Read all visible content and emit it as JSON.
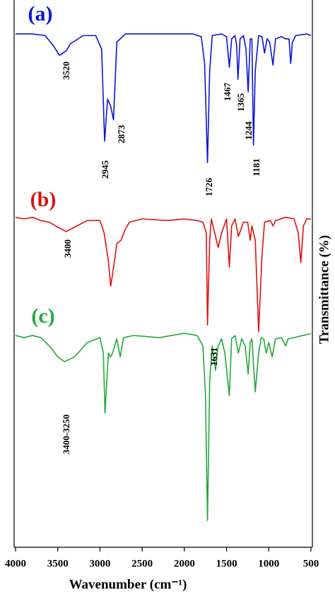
{
  "chart_data": {
    "type": "line",
    "x_label": "Wavenumber (cm⁻¹)",
    "y_label": "Transmittance (%)",
    "xlim": [
      4000,
      500
    ],
    "xticks": [
      4000,
      3500,
      3000,
      2500,
      2000,
      1500,
      1000,
      500
    ],
    "ylim": [
      0,
      100
    ],
    "grid": false,
    "series": [
      {
        "name": "(a)",
        "color": "#0a14d8",
        "x": [
          4000,
          3800,
          3650,
          3550,
          3480,
          3400,
          3350,
          3200,
          3050,
          2980,
          2945,
          2910,
          2873,
          2840,
          2800,
          2700,
          2200,
          1900,
          1800,
          1760,
          1726,
          1700,
          1670,
          1560,
          1500,
          1467,
          1440,
          1400,
          1380,
          1365,
          1340,
          1300,
          1270,
          1244,
          1220,
          1200,
          1181,
          1160,
          1120,
          1080,
          1050,
          1020,
          990,
          950,
          920,
          850,
          800,
          760,
          740,
          720,
          680,
          550,
          500
        ],
        "values": [
          93.8,
          93.8,
          93.5,
          91.6,
          89.9,
          90.7,
          92.0,
          93.5,
          93.5,
          91.0,
          74.2,
          81.9,
          80.6,
          78.1,
          92.3,
          93.8,
          93.8,
          93.8,
          93.3,
          88.4,
          70.3,
          87.1,
          93.5,
          93.8,
          93.3,
          87.7,
          92.9,
          93.5,
          91.6,
          85.5,
          92.9,
          93.5,
          91.0,
          83.2,
          92.9,
          92.9,
          73.5,
          87.1,
          93.5,
          93.3,
          90.3,
          92.9,
          92.3,
          88.1,
          92.9,
          93.3,
          92.9,
          92.9,
          88.4,
          92.3,
          93.5,
          93.8,
          93.5
        ]
      },
      {
        "name": "(b)",
        "color": "#e01010",
        "x": [
          4000,
          3900,
          3800,
          3700,
          3600,
          3500,
          3400,
          3300,
          3150,
          3000,
          2950,
          2900,
          2873,
          2840,
          2800,
          2750,
          2700,
          2650,
          2500,
          2200,
          2000,
          1850,
          1780,
          1740,
          1726,
          1700,
          1680,
          1640,
          1600,
          1560,
          1500,
          1467,
          1440,
          1400,
          1360,
          1300,
          1250,
          1220,
          1200,
          1160,
          1120,
          1080,
          1050,
          980,
          950,
          920,
          800,
          700,
          650,
          620,
          590,
          550,
          500
        ],
        "values": [
          60.3,
          60.0,
          60.3,
          59.7,
          59.4,
          58.5,
          57.7,
          58.5,
          59.7,
          59.7,
          57.4,
          52.3,
          47.7,
          51.0,
          55.5,
          56.1,
          58.1,
          59.4,
          60.0,
          59.7,
          60.0,
          59.7,
          59.4,
          57.4,
          40.6,
          56.1,
          60.0,
          57.4,
          54.8,
          57.4,
          60.0,
          51.2,
          58.7,
          60.0,
          56.8,
          59.4,
          59.4,
          56.1,
          58.7,
          56.1,
          39.4,
          53.5,
          59.4,
          59.7,
          58.7,
          59.7,
          60.3,
          60.0,
          57.4,
          52.0,
          58.7,
          60.0,
          60.0
        ]
      },
      {
        "name": "(c)",
        "color": "#22a83c",
        "x": [
          4000,
          3900,
          3800,
          3700,
          3600,
          3500,
          3420,
          3300,
          3150,
          3000,
          2960,
          2940,
          2900,
          2873,
          2850,
          2800,
          2760,
          2720,
          2600,
          2300,
          2000,
          1850,
          1780,
          1750,
          1726,
          1700,
          1670,
          1631,
          1600,
          1560,
          1520,
          1467,
          1440,
          1400,
          1360,
          1320,
          1280,
          1244,
          1220,
          1200,
          1160,
          1120,
          1090,
          1060,
          1030,
          1000,
          960,
          920,
          850,
          800,
          770,
          700,
          600,
          500
        ],
        "values": [
          38.7,
          38.3,
          38.7,
          38.3,
          36.8,
          34.8,
          33.9,
          34.8,
          37.4,
          38.3,
          35.5,
          24.5,
          35.5,
          34.8,
          35.5,
          38.1,
          34.8,
          38.3,
          38.7,
          38.3,
          39.1,
          38.7,
          36.8,
          27.7,
          4.9,
          30.3,
          36.8,
          32.3,
          36.8,
          38.1,
          35.5,
          27.7,
          38.1,
          38.7,
          35.5,
          38.1,
          36.8,
          31.6,
          37.4,
          38.1,
          28.4,
          35.5,
          38.3,
          38.1,
          35.5,
          37.4,
          34.8,
          38.1,
          38.3,
          36.8,
          38.1,
          38.3,
          38.7,
          39.0
        ]
      }
    ],
    "annotations": [
      "3520",
      "2945",
      "2873",
      "1726",
      "1467",
      "1365",
      "1244",
      "1181",
      "3400",
      "3400-3250",
      "1631"
    ]
  }
}
